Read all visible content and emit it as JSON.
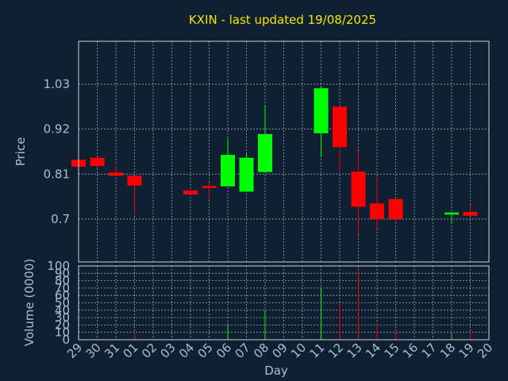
{
  "chart_data": {
    "type": "candlestick",
    "title": "KXIN - last updated 19/08/2025",
    "price_ylabel": "Price",
    "volume_ylabel": "Volume (0000)",
    "xlabel": "Day",
    "price_ticks": [
      "1.03",
      "0.92",
      "0.81",
      "0.7"
    ],
    "price_ylim": [
      0.595,
      1.135
    ],
    "volume_ticks": [
      "0",
      "10",
      "20",
      "30",
      "40",
      "50",
      "60",
      "70",
      "80",
      "90",
      "100"
    ],
    "volume_ylim": [
      0,
      100
    ],
    "days": [
      "29",
      "30",
      "31",
      "01",
      "02",
      "03",
      "04",
      "05",
      "06",
      "07",
      "08",
      "09",
      "10",
      "11",
      "12",
      "13",
      "14",
      "15",
      "16",
      "17",
      "18",
      "19",
      "20"
    ],
    "candles": [
      {
        "day": "29",
        "open": 0.845,
        "high": 0.845,
        "low": 0.825,
        "close": 0.828,
        "volume": 0
      },
      {
        "day": "30",
        "open": 0.85,
        "high": 0.85,
        "low": 0.826,
        "close": 0.83,
        "volume": 2
      },
      {
        "day": "31",
        "open": 0.814,
        "high": 0.833,
        "low": 0.807,
        "close": 0.806,
        "volume": 2
      },
      {
        "day": "01",
        "open": 0.806,
        "high": 0.806,
        "low": 0.713,
        "close": 0.782,
        "volume": 10
      },
      {
        "day": "04",
        "open": 0.77,
        "high": 0.77,
        "low": 0.76,
        "close": 0.76,
        "volume": 1
      },
      {
        "day": "05",
        "open": 0.781,
        "high": 0.79,
        "low": 0.748,
        "close": 0.776,
        "volume": 1
      },
      {
        "day": "06",
        "open": 0.78,
        "high": 0.897,
        "low": 0.78,
        "close": 0.857,
        "volume": 20
      },
      {
        "day": "07",
        "open": 0.767,
        "high": 0.86,
        "low": 0.767,
        "close": 0.85,
        "volume": 1
      },
      {
        "day": "08",
        "open": 0.815,
        "high": 0.98,
        "low": 0.815,
        "close": 0.908,
        "volume": 40
      },
      {
        "day": "11",
        "open": 0.91,
        "high": 1.025,
        "low": 0.851,
        "close": 1.02,
        "volume": 70
      },
      {
        "day": "12",
        "open": 0.975,
        "high": 0.975,
        "low": 0.813,
        "close": 0.876,
        "volume": 48
      },
      {
        "day": "13",
        "open": 0.816,
        "high": 0.867,
        "low": 0.66,
        "close": 0.73,
        "volume": 95
      },
      {
        "day": "14",
        "open": 0.738,
        "high": 0.8,
        "low": 0.677,
        "close": 0.7,
        "volume": 22
      },
      {
        "day": "15",
        "open": 0.749,
        "high": 0.749,
        "low": 0.69,
        "close": 0.7,
        "volume": 9
      },
      {
        "day": "18",
        "open": 0.711,
        "high": 0.717,
        "low": 0.689,
        "close": 0.716,
        "volume": 8
      },
      {
        "day": "19",
        "open": 0.717,
        "high": 0.735,
        "low": 0.706,
        "close": 0.708,
        "volume": 10
      }
    ],
    "colors": {
      "up": "#00ff00",
      "down": "#ff0000",
      "title": "#f2e600",
      "axis_text": "#a9bfd6",
      "background": "#0f2033"
    },
    "grid": true
  }
}
